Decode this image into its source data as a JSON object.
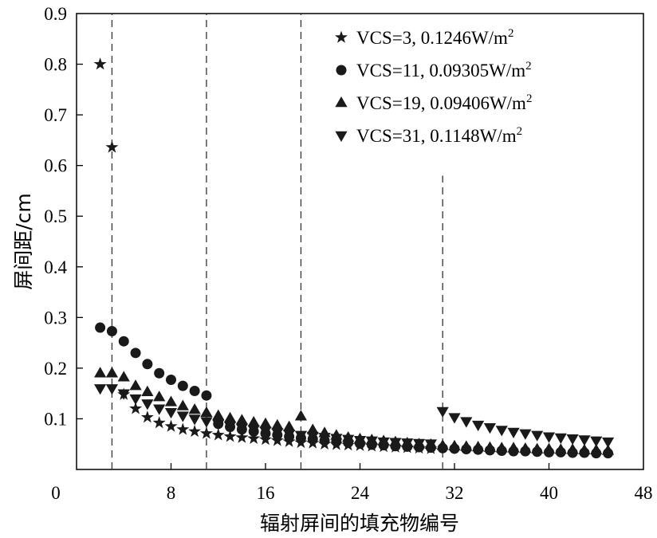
{
  "chart_data": {
    "type": "scatter",
    "xlabel": "辐射屏间的填充物编号",
    "ylabel": "屏间距/cm",
    "xlim": [
      0,
      48
    ],
    "ylim": [
      0,
      0.9
    ],
    "xticks": [
      "0",
      "8",
      "16",
      "24",
      "32",
      "40",
      "48"
    ],
    "yticks": [
      "0.1",
      "0.2",
      "0.3",
      "0.4",
      "0.5",
      "0.6",
      "0.7",
      "0.8",
      "0.9"
    ],
    "vlines": [
      {
        "x": 3,
        "y_top": 0.9
      },
      {
        "x": 11,
        "y_top": 0.9
      },
      {
        "x": 19,
        "y_top": 0.9
      },
      {
        "x": 31,
        "y_top": 0.58
      }
    ],
    "series": [
      {
        "name": "VCS=3, 0.1246W/m²",
        "legend": {
          "base": "VCS=3, 0.1246W/m",
          "sup": "2"
        },
        "marker": "star",
        "x": [
          2,
          3,
          4,
          5,
          6,
          7,
          8,
          9,
          10,
          11,
          12,
          13,
          14,
          15,
          16,
          17,
          18,
          19,
          20,
          21,
          22,
          23,
          24,
          25,
          26,
          27,
          28,
          29,
          30
        ],
        "y": [
          0.8,
          0.636,
          0.148,
          0.12,
          0.103,
          0.092,
          0.085,
          0.079,
          0.075,
          0.071,
          0.068,
          0.065,
          0.063,
          0.061,
          0.059,
          0.057,
          0.055,
          0.053,
          0.052,
          0.05,
          0.049,
          0.048,
          0.047,
          0.046,
          0.045,
          0.044,
          0.043,
          0.042,
          0.041
        ]
      },
      {
        "name": "VCS=11, 0.09305W/m²",
        "legend": {
          "base": "VCS=11, 0.09305W/m",
          "sup": "2"
        },
        "marker": "circle",
        "x": [
          2,
          3,
          4,
          5,
          6,
          7,
          8,
          9,
          10,
          11,
          12,
          13,
          14,
          15,
          16,
          17,
          18,
          19,
          20,
          21,
          22,
          23,
          24,
          25,
          26,
          27,
          28,
          29,
          30,
          31,
          32,
          33,
          34,
          35,
          36,
          37,
          38,
          39,
          40,
          41,
          42,
          43,
          44,
          45
        ],
        "y": [
          0.28,
          0.273,
          0.253,
          0.23,
          0.208,
          0.19,
          0.177,
          0.165,
          0.155,
          0.146,
          0.09,
          0.084,
          0.079,
          0.075,
          0.071,
          0.068,
          0.065,
          0.062,
          0.06,
          0.057,
          0.055,
          0.053,
          0.051,
          0.049,
          0.048,
          0.046,
          0.045,
          0.044,
          0.043,
          0.042,
          0.041,
          0.04,
          0.039,
          0.038,
          0.037,
          0.036,
          0.036,
          0.035,
          0.034,
          0.034,
          0.033,
          0.033,
          0.032,
          0.032
        ]
      },
      {
        "name": "VCS=19, 0.09406W/m²",
        "legend": {
          "base": "VCS=19, 0.09406W/m",
          "sup": "2"
        },
        "marker": "triangle-up",
        "x": [
          2,
          3,
          4,
          5,
          6,
          7,
          8,
          9,
          10,
          11,
          12,
          13,
          14,
          15,
          16,
          17,
          18,
          19,
          20,
          21,
          22,
          23,
          24,
          25,
          26,
          27,
          28,
          29,
          30,
          31,
          32,
          33,
          34,
          35,
          36,
          37,
          38,
          39,
          40,
          41,
          42,
          43,
          44,
          45
        ],
        "y": [
          0.19,
          0.19,
          0.182,
          0.165,
          0.153,
          0.143,
          0.133,
          0.125,
          0.118,
          0.112,
          0.106,
          0.101,
          0.097,
          0.093,
          0.09,
          0.087,
          0.084,
          0.105,
          0.078,
          0.072,
          0.067,
          0.063,
          0.06,
          0.058,
          0.056,
          0.054,
          0.052,
          0.05,
          0.049,
          0.047,
          0.046,
          0.045,
          0.044,
          0.043,
          0.042,
          0.042,
          0.041,
          0.04,
          0.04,
          0.039,
          0.039,
          0.038,
          0.038,
          0.037
        ]
      },
      {
        "name": "VCS=31, 0.1148W/m²",
        "legend": {
          "base": "VCS=31, 0.1148W/m",
          "sup": "2"
        },
        "marker": "triangle-down",
        "x": [
          2,
          3,
          4,
          5,
          6,
          7,
          8,
          9,
          10,
          11,
          12,
          13,
          14,
          15,
          16,
          17,
          18,
          19,
          20,
          21,
          22,
          23,
          24,
          25,
          26,
          27,
          28,
          29,
          30,
          31,
          32,
          33,
          34,
          35,
          36,
          37,
          38,
          39,
          40,
          41,
          42,
          43,
          44,
          45
        ],
        "y": [
          0.16,
          0.16,
          0.15,
          0.14,
          0.13,
          0.12,
          0.113,
          0.106,
          0.1,
          0.095,
          0.09,
          0.086,
          0.082,
          0.079,
          0.076,
          0.073,
          0.07,
          0.068,
          0.066,
          0.064,
          0.062,
          0.06,
          0.058,
          0.057,
          0.055,
          0.054,
          0.053,
          0.052,
          0.051,
          0.115,
          0.103,
          0.095,
          0.088,
          0.083,
          0.078,
          0.074,
          0.071,
          0.068,
          0.065,
          0.063,
          0.061,
          0.059,
          0.057,
          0.055
        ]
      }
    ]
  }
}
